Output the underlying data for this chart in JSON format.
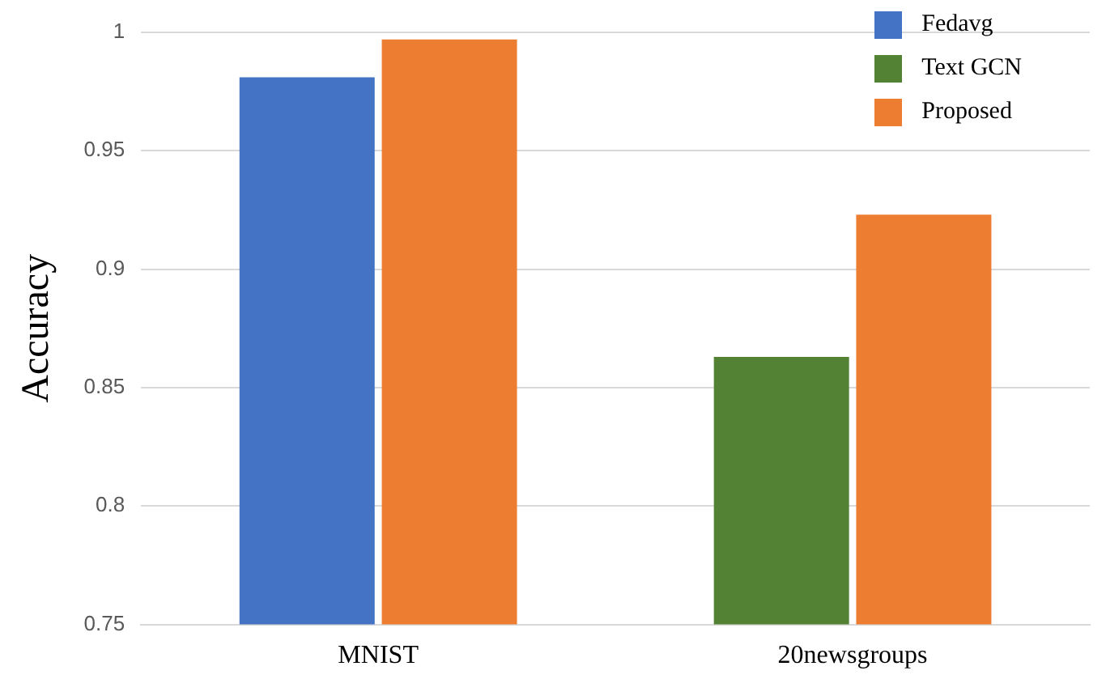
{
  "chart_data": {
    "type": "bar",
    "ylabel": "Accuracy",
    "categories": [
      "MNIST",
      "20newsgroups"
    ],
    "series": [
      {
        "name": "Fedavg",
        "color": "#4472c4",
        "values": [
          0.981,
          null
        ]
      },
      {
        "name": "Text GCN",
        "color": "#548235",
        "values": [
          null,
          0.863
        ]
      },
      {
        "name": "Proposed",
        "color": "#ed7d31",
        "values": [
          0.997,
          0.923
        ]
      }
    ],
    "ylim": [
      0.75,
      1
    ],
    "yticks": [
      0.75,
      0.8,
      0.85,
      0.9,
      0.95,
      1
    ],
    "grid": "y",
    "legend": "top right"
  }
}
